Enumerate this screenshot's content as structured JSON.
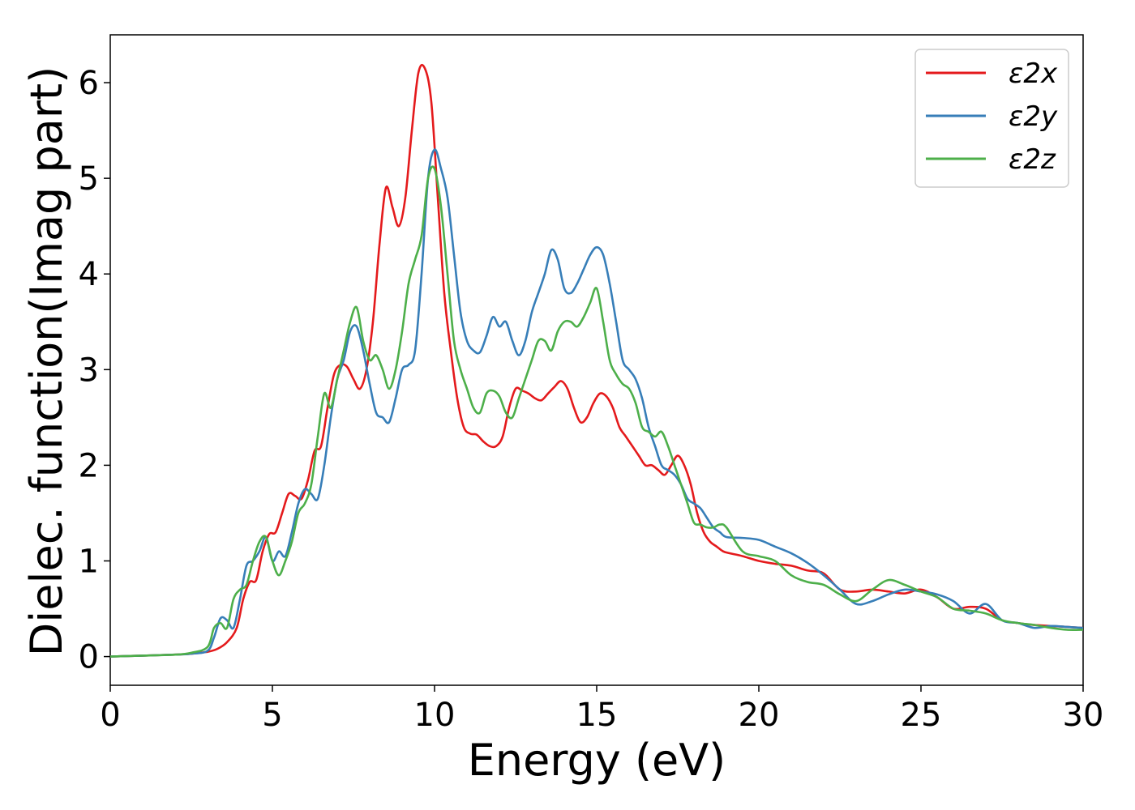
{
  "chart_data": {
    "type": "line",
    "title": "",
    "xlabel": "Energy (eV)",
    "ylabel": "Dielec. function(Imag part)",
    "xlim": [
      0,
      30
    ],
    "ylim": [
      -0.3,
      6.5
    ],
    "xticks": [
      0,
      5,
      10,
      15,
      20,
      25,
      30
    ],
    "yticks": [
      0,
      1,
      2,
      3,
      4,
      5,
      6
    ],
    "grid": false,
    "legend_position": "top-right",
    "series": [
      {
        "name": "ε2x",
        "color": "#e41a1c",
        "x": [
          0,
          1,
          2,
          2.5,
          3,
          3.3,
          3.6,
          3.9,
          4.1,
          4.3,
          4.5,
          4.7,
          4.9,
          5.1,
          5.3,
          5.5,
          5.7,
          5.9,
          6.1,
          6.3,
          6.5,
          6.7,
          6.9,
          7.1,
          7.3,
          7.5,
          7.7,
          7.9,
          8.1,
          8.3,
          8.5,
          8.7,
          8.9,
          9.1,
          9.3,
          9.5,
          9.7,
          9.9,
          10.1,
          10.3,
          10.5,
          10.7,
          10.9,
          11.1,
          11.3,
          11.5,
          11.7,
          11.9,
          12.1,
          12.3,
          12.5,
          12.7,
          12.9,
          13.1,
          13.3,
          13.5,
          13.7,
          13.9,
          14.1,
          14.3,
          14.5,
          14.7,
          14.9,
          15.1,
          15.3,
          15.5,
          15.7,
          15.9,
          16.1,
          16.3,
          16.5,
          16.7,
          16.9,
          17.1,
          17.3,
          17.5,
          17.7,
          17.9,
          18.1,
          18.3,
          18.5,
          18.7,
          18.9,
          19.1,
          19.5,
          20,
          20.5,
          21,
          21.5,
          22,
          22.5,
          23,
          23.5,
          24,
          24.5,
          25,
          25.5,
          26,
          26.5,
          27,
          27.5,
          28,
          28.5,
          29,
          29.5,
          30
        ],
        "values": [
          0,
          0.01,
          0.02,
          0.03,
          0.05,
          0.08,
          0.15,
          0.3,
          0.6,
          0.78,
          0.8,
          1.1,
          1.28,
          1.3,
          1.5,
          1.7,
          1.68,
          1.65,
          1.85,
          2.15,
          2.2,
          2.6,
          2.95,
          3.05,
          3.03,
          2.9,
          2.8,
          3.0,
          3.5,
          4.3,
          4.9,
          4.7,
          4.5,
          4.8,
          5.5,
          6.1,
          6.15,
          5.8,
          4.8,
          3.8,
          3.2,
          2.7,
          2.4,
          2.33,
          2.32,
          2.25,
          2.2,
          2.2,
          2.3,
          2.6,
          2.8,
          2.78,
          2.75,
          2.7,
          2.68,
          2.75,
          2.82,
          2.88,
          2.8,
          2.6,
          2.45,
          2.5,
          2.65,
          2.75,
          2.72,
          2.6,
          2.4,
          2.3,
          2.2,
          2.1,
          2.0,
          2.0,
          1.95,
          1.9,
          2.0,
          2.1,
          2.0,
          1.8,
          1.5,
          1.3,
          1.2,
          1.15,
          1.1,
          1.08,
          1.05,
          1.0,
          0.97,
          0.95,
          0.9,
          0.87,
          0.7,
          0.68,
          0.7,
          0.68,
          0.66,
          0.7,
          0.62,
          0.5,
          0.52,
          0.5,
          0.38,
          0.35,
          0.33,
          0.32,
          0.31,
          0.3
        ]
      },
      {
        "name": "ε2y",
        "color": "#377eb8",
        "x": [
          0,
          1,
          2,
          2.5,
          3,
          3.2,
          3.4,
          3.6,
          3.8,
          4.0,
          4.2,
          4.4,
          4.6,
          4.8,
          5.0,
          5.2,
          5.4,
          5.6,
          5.8,
          6.0,
          6.2,
          6.4,
          6.6,
          6.8,
          7.0,
          7.2,
          7.4,
          7.6,
          7.8,
          8.0,
          8.2,
          8.4,
          8.6,
          8.8,
          9.0,
          9.2,
          9.4,
          9.6,
          9.8,
          10.0,
          10.2,
          10.4,
          10.6,
          10.8,
          11.0,
          11.2,
          11.4,
          11.6,
          11.8,
          12.0,
          12.2,
          12.4,
          12.6,
          12.8,
          13.0,
          13.2,
          13.4,
          13.6,
          13.8,
          14.0,
          14.2,
          14.4,
          14.6,
          14.8,
          15.0,
          15.2,
          15.4,
          15.6,
          15.8,
          16.0,
          16.2,
          16.4,
          16.6,
          16.8,
          17.0,
          17.2,
          17.4,
          17.6,
          17.8,
          18.0,
          18.2,
          18.4,
          18.6,
          18.8,
          19.0,
          19.5,
          20,
          20.5,
          21,
          21.5,
          22,
          22.5,
          23,
          23.5,
          24,
          24.5,
          25,
          25.5,
          26,
          26.5,
          27,
          27.5,
          28,
          28.5,
          29,
          29.5,
          30
        ],
        "values": [
          0,
          0.01,
          0.02,
          0.03,
          0.06,
          0.2,
          0.4,
          0.38,
          0.3,
          0.6,
          0.95,
          1.0,
          1.1,
          1.25,
          1.0,
          1.1,
          1.05,
          1.3,
          1.6,
          1.75,
          1.7,
          1.65,
          2.0,
          2.5,
          2.9,
          3.1,
          3.4,
          3.45,
          3.2,
          2.85,
          2.55,
          2.5,
          2.45,
          2.7,
          3.0,
          3.05,
          3.2,
          4.0,
          5.0,
          5.3,
          5.1,
          4.8,
          4.2,
          3.6,
          3.3,
          3.2,
          3.18,
          3.35,
          3.55,
          3.45,
          3.5,
          3.3,
          3.15,
          3.3,
          3.6,
          3.8,
          4.0,
          4.25,
          4.15,
          3.85,
          3.8,
          3.9,
          4.05,
          4.2,
          4.28,
          4.2,
          3.9,
          3.5,
          3.1,
          3.0,
          2.9,
          2.7,
          2.4,
          2.2,
          2.0,
          1.95,
          1.9,
          1.8,
          1.65,
          1.6,
          1.55,
          1.45,
          1.35,
          1.3,
          1.25,
          1.24,
          1.22,
          1.15,
          1.08,
          0.98,
          0.85,
          0.7,
          0.55,
          0.58,
          0.65,
          0.7,
          0.68,
          0.65,
          0.58,
          0.45,
          0.55,
          0.38,
          0.35,
          0.3,
          0.32,
          0.31,
          0.3
        ]
      },
      {
        "name": "ε2z",
        "color": "#4daf4a",
        "x": [
          0,
          1,
          2,
          2.5,
          3,
          3.2,
          3.4,
          3.6,
          3.8,
          4.0,
          4.2,
          4.4,
          4.6,
          4.8,
          5.0,
          5.2,
          5.4,
          5.6,
          5.8,
          6.0,
          6.2,
          6.4,
          6.6,
          6.8,
          7.0,
          7.2,
          7.4,
          7.6,
          7.8,
          8.0,
          8.2,
          8.4,
          8.6,
          8.8,
          9.0,
          9.2,
          9.4,
          9.6,
          9.8,
          10.0,
          10.2,
          10.4,
          10.6,
          10.8,
          11.0,
          11.2,
          11.4,
          11.6,
          11.8,
          12.0,
          12.2,
          12.4,
          12.6,
          12.8,
          13.0,
          13.2,
          13.4,
          13.6,
          13.8,
          14.0,
          14.2,
          14.4,
          14.6,
          14.8,
          15.0,
          15.2,
          15.4,
          15.6,
          15.8,
          16.0,
          16.2,
          16.4,
          16.6,
          16.8,
          17.0,
          17.2,
          17.4,
          17.6,
          17.8,
          18.0,
          18.2,
          18.4,
          18.6,
          18.8,
          19.0,
          19.5,
          20,
          20.5,
          21,
          21.5,
          22,
          22.5,
          23,
          23.5,
          24,
          24.5,
          25,
          25.5,
          26,
          26.5,
          27,
          27.5,
          28,
          28.5,
          29,
          29.5,
          30
        ],
        "values": [
          0,
          0.01,
          0.02,
          0.04,
          0.1,
          0.3,
          0.35,
          0.3,
          0.6,
          0.7,
          0.75,
          1.0,
          1.2,
          1.25,
          1.0,
          0.85,
          1.0,
          1.2,
          1.5,
          1.6,
          1.8,
          2.3,
          2.75,
          2.6,
          2.9,
          3.2,
          3.5,
          3.65,
          3.3,
          3.1,
          3.15,
          3.0,
          2.8,
          3.0,
          3.4,
          3.9,
          4.15,
          4.4,
          5.0,
          5.1,
          4.7,
          4.0,
          3.3,
          3.0,
          2.8,
          2.6,
          2.55,
          2.75,
          2.78,
          2.72,
          2.55,
          2.5,
          2.7,
          2.9,
          3.1,
          3.3,
          3.3,
          3.2,
          3.4,
          3.5,
          3.5,
          3.45,
          3.55,
          3.7,
          3.85,
          3.5,
          3.1,
          2.95,
          2.85,
          2.8,
          2.65,
          2.4,
          2.35,
          2.3,
          2.35,
          2.2,
          2.0,
          1.8,
          1.6,
          1.4,
          1.38,
          1.35,
          1.35,
          1.38,
          1.35,
          1.1,
          1.05,
          1.0,
          0.85,
          0.78,
          0.75,
          0.65,
          0.58,
          0.7,
          0.8,
          0.75,
          0.68,
          0.62,
          0.5,
          0.48,
          0.45,
          0.38,
          0.35,
          0.33,
          0.3,
          0.28,
          0.28
        ]
      }
    ]
  }
}
